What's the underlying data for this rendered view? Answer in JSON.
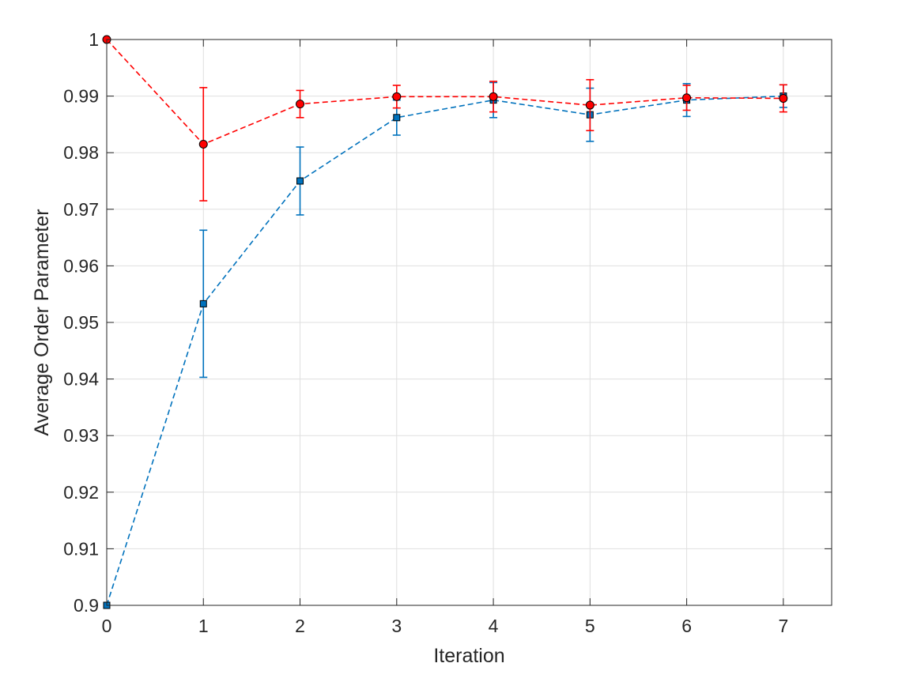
{
  "chart_data": {
    "type": "line",
    "title": "",
    "xlabel": "Iteration",
    "ylabel": "Average Order Parameter",
    "xlim": [
      0,
      7.5
    ],
    "ylim": [
      0.9,
      1.0
    ],
    "xticks": [
      0,
      1,
      2,
      3,
      4,
      5,
      6,
      7
    ],
    "yticks": [
      0.9,
      0.91,
      0.92,
      0.93,
      0.94,
      0.95,
      0.96,
      0.97,
      0.98,
      0.99,
      1.0
    ],
    "xtick_labels": [
      "0",
      "1",
      "2",
      "3",
      "4",
      "5",
      "6",
      "7"
    ],
    "ytick_labels": [
      "0.9",
      "0.91",
      "0.92",
      "0.93",
      "0.94",
      "0.95",
      "0.96",
      "0.97",
      "0.98",
      "0.99",
      "1"
    ],
    "grid": true,
    "series": [
      {
        "color": "#0072BD",
        "marker": "square",
        "line_style": "dashed",
        "x": [
          0,
          1,
          2,
          3,
          4,
          5,
          6,
          7
        ],
        "y": [
          0.9,
          0.9533,
          0.975,
          0.9862,
          0.9893,
          0.9867,
          0.9893,
          0.99
        ],
        "err": [
          0,
          0.013,
          0.006,
          0.0031,
          0.0031,
          0.0047,
          0.0029,
          0.002
        ]
      },
      {
        "color": "#FF0000",
        "marker": "circle",
        "line_style": "dashed",
        "x": [
          0,
          1,
          2,
          3,
          4,
          5,
          6,
          7
        ],
        "y": [
          1.0,
          0.9815,
          0.9886,
          0.9899,
          0.9899,
          0.9884,
          0.9897,
          0.9896
        ],
        "err": [
          0,
          0.01,
          0.0024,
          0.002,
          0.0027,
          0.0045,
          0.0022,
          0.0024
        ]
      }
    ]
  }
}
